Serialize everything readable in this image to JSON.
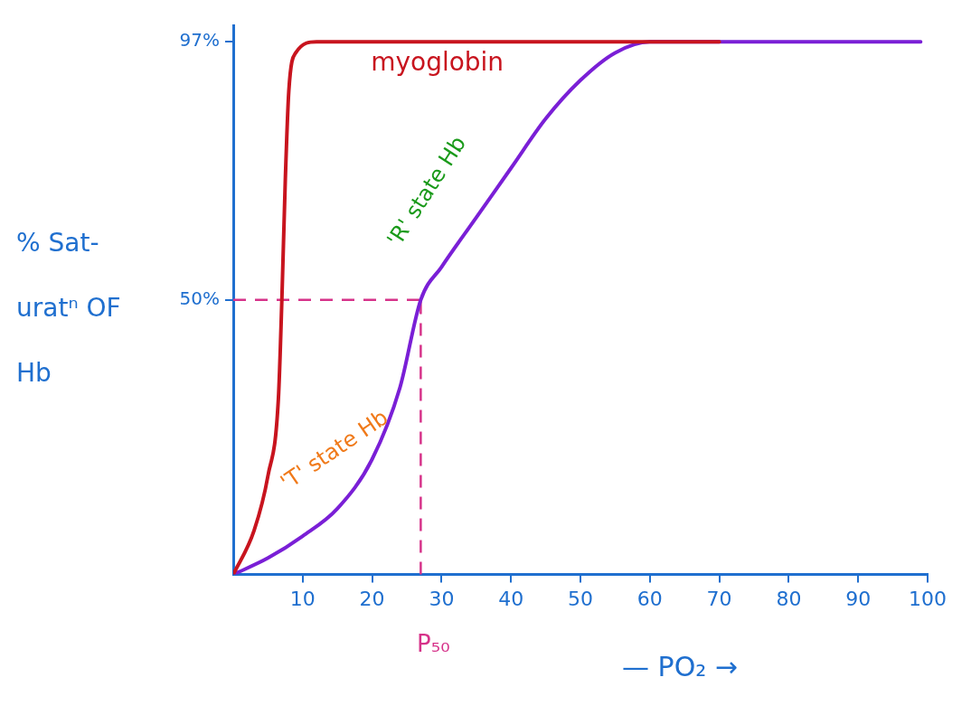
{
  "chart_data": {
    "type": "line",
    "xlabel": "— PO₂ →",
    "ylabel": "% Sat- uratⁿ OF Hb",
    "xlim": [
      0,
      100
    ],
    "xticks": [
      10,
      20,
      30,
      40,
      50,
      60,
      70,
      80,
      90,
      100
    ],
    "ylim": [
      0,
      100
    ],
    "yticks": [
      {
        "value": 50,
        "label": "50%"
      },
      {
        "value": 97,
        "label": "97%"
      }
    ],
    "grid": false,
    "legend": false,
    "marker": "none",
    "line_style": "solid",
    "series": [
      {
        "name": "myoglobin",
        "color": "#c8141e",
        "x": [
          0,
          3,
          5,
          6.5,
          7,
          7.5,
          8,
          9,
          12,
          20,
          40,
          70
        ],
        "values": [
          0,
          8,
          18,
          32,
          50,
          72,
          88,
          95,
          97,
          97,
          97,
          97
        ]
      },
      {
        "color": "#7a1fd6",
        "x": [
          0,
          5,
          10,
          15,
          20,
          24,
          27,
          30,
          35,
          40,
          45,
          50,
          55,
          60,
          70,
          80,
          90,
          99
        ],
        "values": [
          0,
          3,
          7,
          12,
          21,
          34,
          50,
          56,
          65,
          74,
          83,
          90,
          95,
          97,
          97,
          97,
          97,
          97
        ]
      }
    ],
    "ref_lines": [
      {
        "axis": "y",
        "value": 50,
        "color": "#d6338a",
        "line_style": "dashed"
      },
      {
        "axis": "x",
        "value": 27,
        "color": "#d6338a",
        "line_style": "dashed",
        "label": "P₅₀"
      }
    ],
    "annotations": [
      "'T' state Hb",
      "'R' state Hb"
    ]
  }
}
